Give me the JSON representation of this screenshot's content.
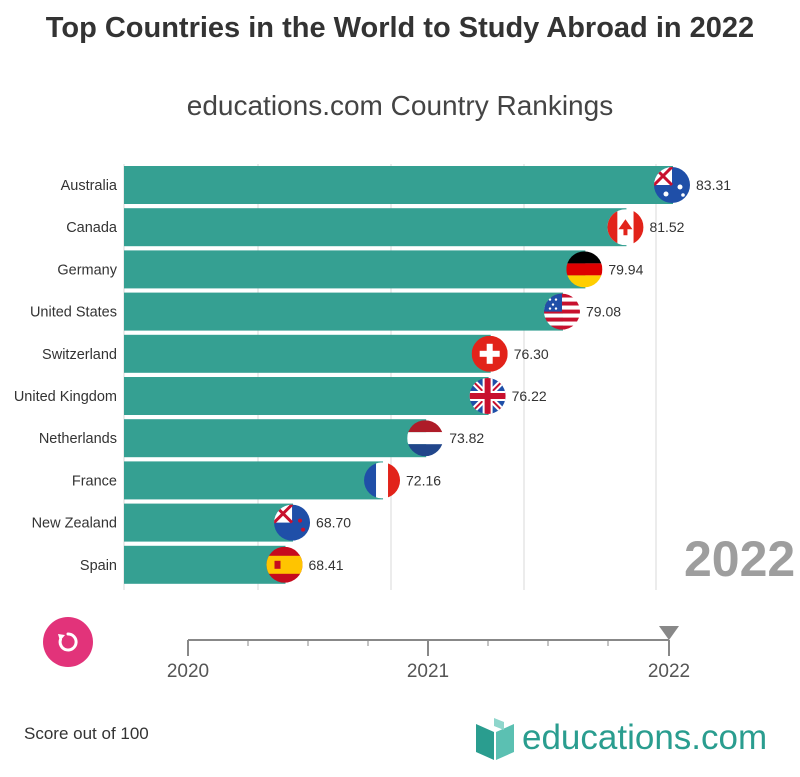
{
  "title": "Top Countries in the World to Study Abroad in 2022",
  "subtitle": "educations.com Country Rankings",
  "current_year": "2022",
  "footer_note": "Score out of 100",
  "brand_text": "educations.com",
  "colors": {
    "bar": "#35a092",
    "accent": "#e2337a",
    "year": "#9e9e9e",
    "brand": "#2a9d8f"
  },
  "chart_data": {
    "type": "bar",
    "orientation": "horizontal",
    "categories": [
      "Australia",
      "Canada",
      "Germany",
      "United States",
      "Switzerland",
      "United Kingdom",
      "Netherlands",
      "France",
      "New Zealand",
      "Spain"
    ],
    "values": [
      83.31,
      81.52,
      79.94,
      79.08,
      76.3,
      76.22,
      73.82,
      72.16,
      68.7,
      68.41
    ],
    "value_labels": [
      "83.31",
      "81.52",
      "79.94",
      "79.08",
      "76.30",
      "76.22",
      "73.82",
      "72.16",
      "68.70",
      "68.41"
    ],
    "flag_icons": [
      "australia-flag-icon",
      "canada-flag-icon",
      "germany-flag-icon",
      "united-states-flag-icon",
      "switzerland-flag-icon",
      "united-kingdom-flag-icon",
      "netherlands-flag-icon",
      "france-flag-icon",
      "new-zealand-flag-icon",
      "spain-flag-icon"
    ],
    "timeline": {
      "ticks": [
        "2020",
        "2021",
        "2022"
      ],
      "current": "2022"
    },
    "grid": true
  }
}
